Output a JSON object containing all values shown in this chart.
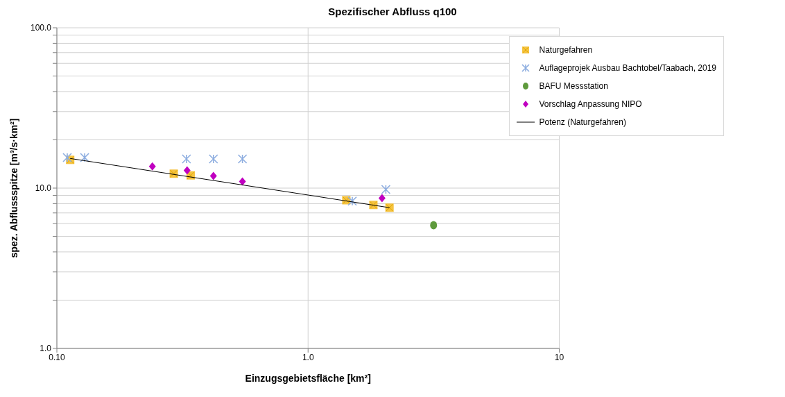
{
  "chart_data": {
    "type": "scatter",
    "title": "Spezifischer Abfluss q100",
    "xlabel": "Einzugsgebietsfläche [km²]",
    "ylabel": "spez. Abflussspitze [m³/s·km²]",
    "log": "xy",
    "xlim": [
      0.1,
      10
    ],
    "ylim": [
      1,
      100
    ],
    "xticks": [
      {
        "value": 0.1,
        "label": "0.10"
      },
      {
        "value": 1,
        "label": "1.0"
      },
      10
    ],
    "yticks": [
      {
        "value": 1,
        "label": "1.0"
      },
      {
        "value": 2,
        "label": null
      },
      {
        "value": 3,
        "label": null
      },
      {
        "value": 4,
        "label": null
      },
      {
        "value": 5,
        "label": null
      },
      {
        "value": 6,
        "label": null
      },
      {
        "value": 7,
        "label": null
      },
      {
        "value": 8,
        "label": null
      },
      {
        "value": 9,
        "label": null
      },
      {
        "value": 10,
        "label": "10.0"
      },
      {
        "value": 20,
        "label": null
      },
      {
        "value": 30,
        "label": null
      },
      {
        "value": 40,
        "label": null
      },
      {
        "value": 50,
        "label": null
      },
      {
        "value": 60,
        "label": null
      },
      {
        "value": 70,
        "label": null
      },
      {
        "value": 80,
        "label": null
      },
      {
        "value": 90,
        "label": null
      },
      {
        "value": 100,
        "label": "100.0"
      }
    ],
    "grid": true,
    "legend": "top right",
    "series": [
      {
        "name": "Naturgefahren",
        "marker": "square",
        "color": "#f5c342",
        "x": [
          0.113,
          0.292,
          0.341,
          1.42,
          1.82,
          2.11
        ],
        "values": [
          15.0,
          12.3,
          12.0,
          8.4,
          7.85,
          7.55
        ]
      },
      {
        "name": "Auflageprojek Ausbau Bachtobel/Taabach, 2019",
        "marker": "cross",
        "color": "#8eaee0",
        "x": [
          0.11,
          0.129,
          0.328,
          0.42,
          0.548,
          1.5,
          2.04
        ],
        "values": [
          15.5,
          15.5,
          15.2,
          15.2,
          15.2,
          8.3,
          9.8
        ]
      },
      {
        "name": "BAFU Messstation",
        "marker": "circle",
        "color": "#5e9a3c",
        "x": [
          3.16
        ],
        "values": [
          5.86
        ]
      },
      {
        "name": "Vorschlag Anpassung NIPO",
        "marker": "diamond",
        "color": "#c000c0",
        "x": [
          0.24,
          0.33,
          0.42,
          0.548,
          1.97
        ],
        "values": [
          13.65,
          12.9,
          11.9,
          11.0,
          8.65
        ]
      },
      {
        "name": "Potenz (Naturgefahren)",
        "type": "line",
        "marker": "none",
        "line_style": "solid",
        "color": "#000000",
        "x": [
          0.113,
          1,
          2.11
        ],
        "values": [
          15.3,
          9.05,
          7.55
        ]
      }
    ]
  }
}
